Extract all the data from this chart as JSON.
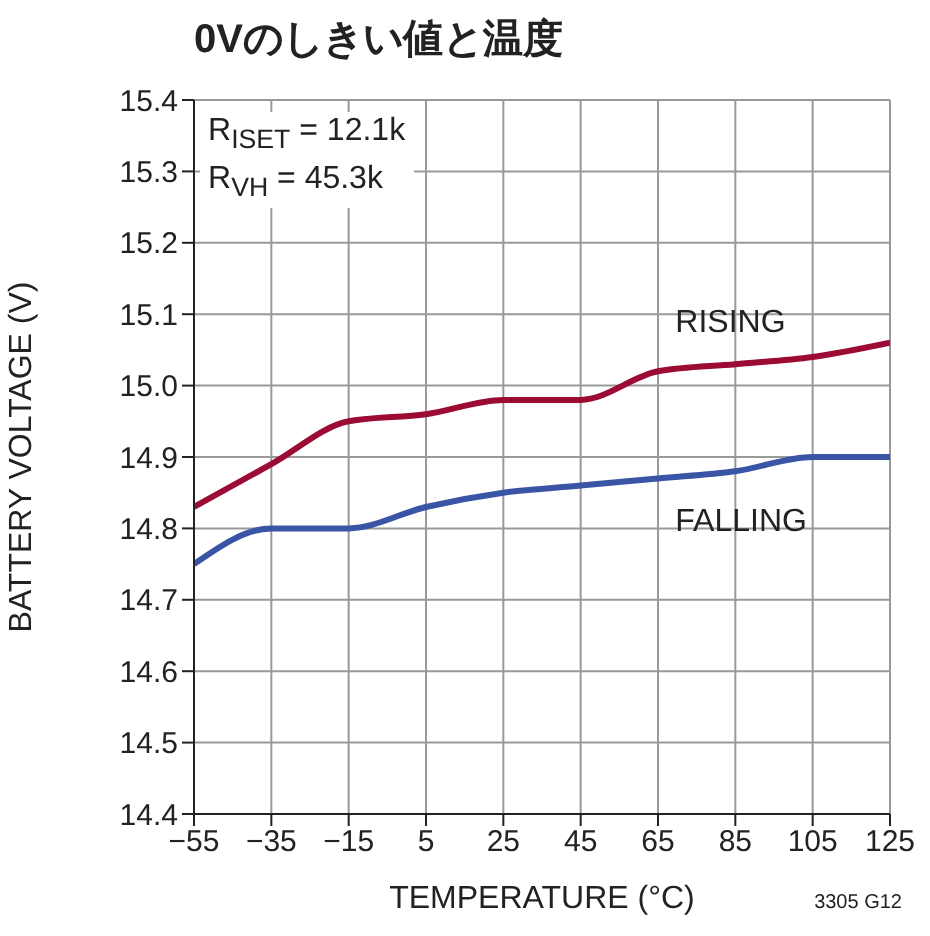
{
  "chart_data": {
    "type": "line",
    "title": "0Vのしきい値と温度",
    "xlabel": "TEMPERATURE (°C)",
    "ylabel": "BATTERY VOLTAGE (V)",
    "x": [
      -55,
      -35,
      -15,
      5,
      25,
      45,
      65,
      85,
      105,
      125
    ],
    "series": [
      {
        "name": "RISING",
        "color": "#9c0b34",
        "values": [
          14.83,
          14.89,
          14.95,
          14.96,
          14.98,
          14.98,
          15.02,
          15.03,
          15.04,
          15.06
        ]
      },
      {
        "name": "FALLING",
        "color": "#3a54a6",
        "values": [
          14.75,
          14.8,
          14.8,
          14.83,
          14.85,
          14.86,
          14.87,
          14.88,
          14.9,
          14.9
        ]
      }
    ],
    "xlim": [
      -55,
      125
    ],
    "xticks": [
      {
        "value": -55,
        "label": "−55"
      },
      {
        "value": -35,
        "label": "−35"
      },
      {
        "value": -15,
        "label": "−15"
      },
      5,
      25,
      45,
      65,
      85,
      105,
      125
    ],
    "ylim": [
      14.4,
      15.4
    ],
    "yticks": [
      14.4,
      14.5,
      14.6,
      14.7,
      14.8,
      14.9,
      {
        "value": 15,
        "label": "15.0"
      },
      15.1,
      15.2,
      15.3,
      15.4
    ],
    "grid": true,
    "marker": "none",
    "line_style": "solid",
    "annotations": [
      "R$_{ISET}$ = 12.1k",
      "R$_{VH}$ = 45.3k",
      "3305 G12"
    ]
  }
}
